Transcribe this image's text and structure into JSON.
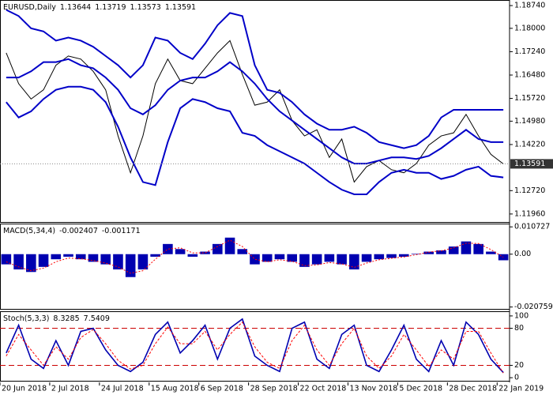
{
  "chart_data": [
    {
      "type": "line",
      "title": "EURUSD,Daily",
      "ohlc": [
        1.13644,
        1.13719,
        1.13573,
        1.13591
      ],
      "last_price": 1.13591,
      "categories": [
        "20 Jun 2018",
        null,
        null,
        null,
        "2 Jul 2018",
        null,
        null,
        null,
        "24 Jul 2018",
        null,
        null,
        null,
        "15 Aug 2018",
        null,
        null,
        null,
        "6 Sep 2018",
        null,
        null,
        null,
        "28 Sep 2018",
        null,
        null,
        null,
        "22 Oct 2018",
        null,
        null,
        null,
        "13 Nov 2018",
        null,
        null,
        null,
        "5 Dec 2018",
        null,
        null,
        null,
        "28 Dec 2018",
        null,
        null,
        null,
        "22 Jan 2019"
      ],
      "series": [
        {
          "color": "#000000",
          "values": [
            1.172,
            1.162,
            1.157,
            1.16,
            1.168,
            1.171,
            1.17,
            1.166,
            1.16,
            1.145,
            1.133,
            1.145,
            1.162,
            1.17,
            1.163,
            1.162,
            1.167,
            1.172,
            1.176,
            1.165,
            1.155,
            1.156,
            1.16,
            1.15,
            1.145,
            1.147,
            1.138,
            1.144,
            1.13,
            1.135,
            1.137,
            1.134,
            1.133,
            1.136,
            1.142,
            1.145,
            1.146,
            1.152,
            1.145,
            1.139,
            1.1359
          ]
        },
        {
          "color": "#0000c8",
          "values": [
            1.186,
            1.184,
            1.18,
            1.179,
            1.176,
            1.177,
            1.176,
            1.174,
            1.171,
            1.168,
            1.164,
            1.168,
            1.177,
            1.176,
            1.172,
            1.17,
            1.175,
            1.181,
            1.185,
            1.184,
            1.168,
            1.16,
            1.159,
            1.156,
            1.152,
            1.149,
            1.147,
            1.147,
            1.148,
            1.146,
            1.143,
            1.142,
            1.141,
            1.142,
            1.145,
            1.151,
            1.1535,
            1.1535,
            1.1535,
            1.1535,
            1.1535
          ]
        },
        {
          "color": "#0000c8",
          "values": [
            1.164,
            1.164,
            1.166,
            1.169,
            1.169,
            1.17,
            1.168,
            1.167,
            1.164,
            1.16,
            1.154,
            1.152,
            1.155,
            1.16,
            1.163,
            1.164,
            1.164,
            1.166,
            1.169,
            1.166,
            1.162,
            1.157,
            1.153,
            1.15,
            1.147,
            1.144,
            1.141,
            1.138,
            1.136,
            1.136,
            1.137,
            1.138,
            1.138,
            1.1375,
            1.1385,
            1.141,
            1.144,
            1.147,
            1.144,
            1.143,
            1.143
          ]
        },
        {
          "color": "#0000c8",
          "values": [
            1.156,
            1.151,
            1.153,
            1.157,
            1.16,
            1.161,
            1.161,
            1.16,
            1.156,
            1.148,
            1.138,
            1.13,
            1.129,
            1.143,
            1.154,
            1.157,
            1.156,
            1.154,
            1.153,
            1.146,
            1.145,
            1.142,
            1.14,
            1.138,
            1.136,
            1.133,
            1.13,
            1.1275,
            1.126,
            1.126,
            1.13,
            1.133,
            1.134,
            1.133,
            1.133,
            1.131,
            1.132,
            1.134,
            1.135,
            1.132,
            1.1315
          ]
        }
      ],
      "ylim": [
        1.117,
        1.1887
      ],
      "yticks": [
        {
          "value": 1.1874,
          "label": "1.18740"
        },
        {
          "value": 1.18,
          "label": "1.18000"
        },
        {
          "value": 1.1724,
          "label": "1.17240"
        },
        {
          "value": 1.1648,
          "label": "1.16480"
        },
        {
          "value": 1.1572,
          "label": "1.15720"
        },
        {
          "value": 1.1498,
          "label": "1.14980"
        },
        {
          "value": 1.1422,
          "label": "1.14220"
        },
        {
          "value": 1.1272,
          "label": "1.12720"
        },
        {
          "value": 1.1196,
          "label": "1.11960"
        }
      ]
    },
    {
      "type": "macd",
      "title": "MACD(5,34,4)",
      "readings": [
        -0.002407,
        -0.001171
      ],
      "series": [
        {
          "color": "#0000b0",
          "values": [
            -0.004,
            -0.006,
            -0.007,
            -0.005,
            -0.002,
            -0.001,
            -0.002,
            -0.003,
            -0.004,
            -0.006,
            -0.009,
            -0.006,
            -0.001,
            0.004,
            0.002,
            -0.001,
            0.001,
            0.004,
            0.0065,
            0.002,
            -0.004,
            -0.003,
            -0.002,
            -0.003,
            -0.005,
            -0.004,
            -0.003,
            -0.004,
            -0.006,
            -0.003,
            -0.002,
            -0.0015,
            -0.001,
            0.0002,
            0.001,
            0.0015,
            0.003,
            0.005,
            0.004,
            0.001,
            -0.0024
          ]
        },
        {
          "color": "#ff0000",
          "values": [
            -0.003,
            -0.005,
            -0.0065,
            -0.0055,
            -0.003,
            -0.0015,
            -0.0018,
            -0.0025,
            -0.0035,
            -0.005,
            -0.0075,
            -0.0065,
            -0.002,
            0.002,
            0.0025,
            0.0005,
            0.0005,
            0.003,
            0.0055,
            0.003,
            -0.002,
            -0.003,
            -0.0022,
            -0.0028,
            -0.0045,
            -0.0042,
            -0.0033,
            -0.0038,
            -0.0052,
            -0.0035,
            -0.0022,
            -0.0016,
            -0.0011,
            -0.0002,
            0.0008,
            0.0013,
            0.0025,
            0.0043,
            0.0042,
            0.0018,
            -0.0012
          ]
        }
      ],
      "ylim": [
        -0.0215,
        0.0114
      ],
      "yticks": [
        0.010727,
        {
          "value": 0,
          "label": "0.00"
        },
        -0.020759
      ]
    },
    {
      "type": "stoch",
      "title": "Stoch(5,3,3)",
      "readings": [
        8.3285,
        7.5409
      ],
      "series": [
        {
          "color": "#0000b0",
          "values": [
            40,
            85,
            30,
            15,
            60,
            20,
            75,
            80,
            45,
            20,
            10,
            25,
            70,
            90,
            40,
            60,
            85,
            30,
            80,
            95,
            35,
            20,
            10,
            80,
            90,
            30,
            15,
            70,
            85,
            20,
            10,
            45,
            85,
            30,
            10,
            60,
            20,
            90,
            70,
            30,
            8.3285
          ]
        },
        {
          "color": "#ff0000",
          "values": [
            35,
            70,
            45,
            20,
            50,
            30,
            65,
            78,
            55,
            28,
            14,
            20,
            55,
            82,
            55,
            55,
            75,
            45,
            70,
            90,
            50,
            25,
            15,
            60,
            85,
            45,
            20,
            55,
            80,
            35,
            15,
            35,
            70,
            45,
            18,
            45,
            30,
            75,
            75,
            40,
            7.5409
          ]
        }
      ],
      "levels": [
        80,
        20
      ],
      "level_color": "#cc0000",
      "ylim": [
        -5,
        105
      ],
      "yticks": [
        100,
        80,
        20,
        0
      ]
    }
  ]
}
